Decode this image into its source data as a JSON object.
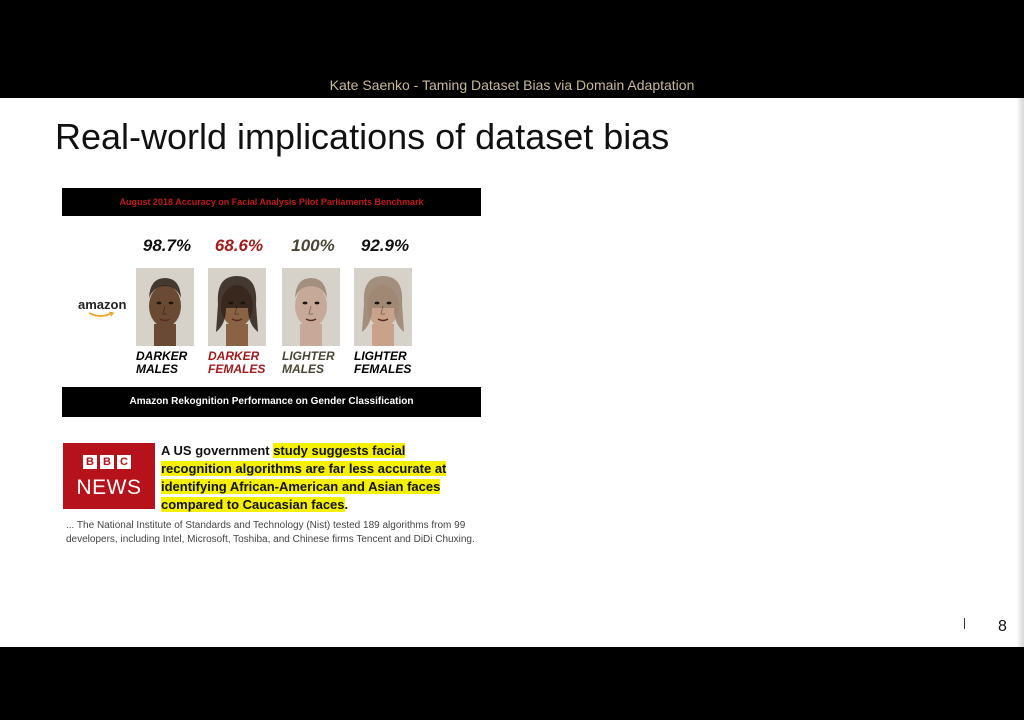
{
  "header": {
    "title": "Kate Saenko - Taming Dataset Bias via Domain Adaptation"
  },
  "slide": {
    "title": "Real-world implications of dataset bias",
    "page_number": "8"
  },
  "figure": {
    "header": "August 2018 Accuracy on Facial Analysis Pilot Parliaments Benchmark",
    "brand": "amazon",
    "footer": "Amazon Rekognition Performance on Gender Classification",
    "groups": [
      {
        "pct": "98.7%",
        "line1": "DARKER",
        "line2": "MALES",
        "pct_color": "#111111",
        "label_color": "#000000",
        "skin": "#6b4a33"
      },
      {
        "pct": "68.6%",
        "line1": "DARKER",
        "line2": "FEMALES",
        "pct_color": "#a01c1c",
        "label_color": "#a01c1c",
        "skin": "#8a6244"
      },
      {
        "pct": "100%",
        "line1": "LIGHTER",
        "line2": "MALES",
        "pct_color": "#4a4636",
        "label_color": "#4a4636",
        "skin": "#c7a99a"
      },
      {
        "pct": "92.9%",
        "line1": "LIGHTER",
        "line2": "FEMALES",
        "pct_color": "#111111",
        "label_color": "#000000",
        "skin": "#c8a28a"
      }
    ]
  },
  "news": {
    "logo_letters": [
      "B",
      "B",
      "C"
    ],
    "logo_word": "NEWS",
    "headline_plain": "A US government ",
    "headline_highlight_1": "study suggests facial",
    "headline_highlight_2": "recognition algorithms are far less accurate at",
    "headline_highlight_3": "identifying African-American and Asian faces",
    "headline_highlight_4": "compared to Caucasian faces",
    "headline_end": ".",
    "body": "... The National Institute of Standards and Technology (Nist) tested 189 algorithms from 99 developers, including Intel, Microsoft, Toshiba, and Chinese firms Tencent and DiDi Chuxing."
  },
  "colors": {
    "bbc_red": "#b5121b",
    "highlight": "#f4f000",
    "header_text": "#c8b99a"
  }
}
